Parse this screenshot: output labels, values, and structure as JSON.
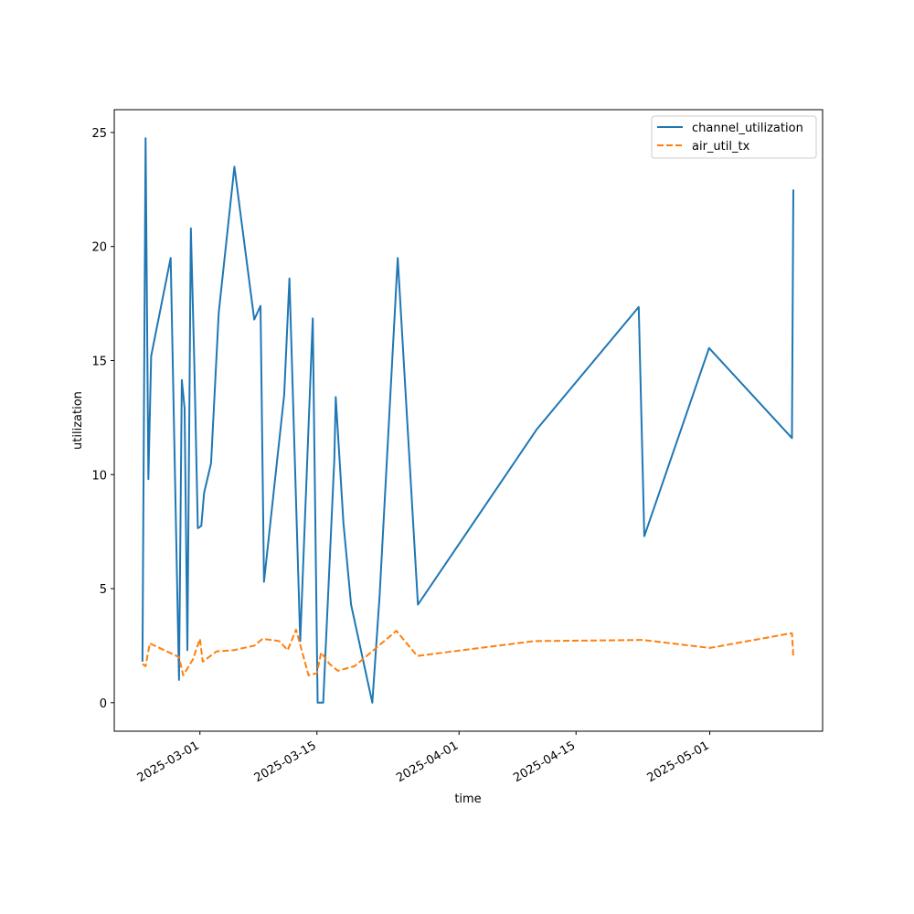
{
  "chart_data": {
    "type": "line",
    "title": "",
    "xlabel": "time",
    "ylabel": "utilization",
    "x_tick_labels": [
      "2025-03-01",
      "2025-03-15",
      "2025-04-01",
      "2025-04-15",
      "2025-05-01"
    ],
    "y_tick_labels": [
      "0",
      "5",
      "10",
      "15",
      "20",
      "25"
    ],
    "y_ticks": [
      0,
      5,
      10,
      15,
      20,
      25
    ],
    "ylim": [
      -1.25,
      26.0
    ],
    "xlim": [
      "2025-02-18T18:00",
      "2025-05-14T12:00"
    ],
    "grid": false,
    "legend_position": "top-right",
    "series": [
      {
        "name": "channel_utilization",
        "color": "#1f77b4",
        "dash": "solid",
        "x": [
          "2025-02-22T03:00",
          "2025-02-22T12:00",
          "2025-02-22T20:00",
          "2025-02-23T04:00",
          "2025-02-25T12:00",
          "2025-02-26T12:00",
          "2025-02-26T20:00",
          "2025-02-27T04:00",
          "2025-02-27T12:00",
          "2025-02-27T22:00",
          "2025-02-28T08:00",
          "2025-02-28T18:00",
          "2025-03-01T04:00",
          "2025-03-01T12:00",
          "2025-03-02T08:00",
          "2025-03-03T06:00",
          "2025-03-05T03:00",
          "2025-03-07T12:00",
          "2025-03-08T06:00",
          "2025-03-08T16:00",
          "2025-03-11T02:00",
          "2025-03-11T17:00",
          "2025-03-13T00:00",
          "2025-03-14T12:00",
          "2025-03-15T02:00",
          "2025-03-15T08:00",
          "2025-03-15T18:00",
          "2025-03-17T02:00",
          "2025-03-17T06:00",
          "2025-03-18T04:00",
          "2025-03-19T02:00",
          "2025-03-21T15:00",
          "2025-03-22T12:00",
          "2025-03-24T16:00",
          "2025-03-27T02:00",
          "2025-04-10T08:00",
          "2025-04-22T12:00",
          "2025-04-23T04:00",
          "2025-04-30T22:00",
          "2025-05-10T20:00",
          "2025-05-11T00:00"
        ],
        "values": [
          1.8,
          24.75,
          9.8,
          15.2,
          19.5,
          1.0,
          14.15,
          12.9,
          2.3,
          20.8,
          14.8,
          7.65,
          7.75,
          9.2,
          10.5,
          17.1,
          23.5,
          16.8,
          17.4,
          5.3,
          13.5,
          18.6,
          2.7,
          16.85,
          0.0,
          0.0,
          0.0,
          10.7,
          13.4,
          7.9,
          4.3,
          0.0,
          4.7,
          19.5,
          4.3,
          12.0,
          17.35,
          7.3,
          15.55,
          11.6,
          22.5
        ]
      },
      {
        "name": "air_util_tx",
        "color": "#ff7f0e",
        "dash": "dashed",
        "x": [
          "2025-02-22T03:00",
          "2025-02-22T12:00",
          "2025-02-23T00:00",
          "2025-02-26T12:00",
          "2025-02-27T00:00",
          "2025-02-28T04:00",
          "2025-03-01T00:00",
          "2025-03-01T08:00",
          "2025-03-03T00:00",
          "2025-03-05T00:00",
          "2025-03-07T12:00",
          "2025-03-08T12:00",
          "2025-03-10T12:00",
          "2025-03-11T12:00",
          "2025-03-12T12:00",
          "2025-03-14T00:00",
          "2025-03-15T00:00",
          "2025-03-15T12:00",
          "2025-03-16T12:00",
          "2025-03-17T12:00",
          "2025-03-18T12:00",
          "2025-03-19T12:00",
          "2025-03-24T12:00",
          "2025-03-27T00:00",
          "2025-04-10T00:00",
          "2025-04-23T00:00",
          "2025-05-01T00:00",
          "2025-05-10T20:00",
          "2025-05-11T00:00"
        ],
        "values": [
          1.7,
          1.6,
          2.6,
          2.0,
          1.2,
          1.9,
          2.8,
          1.8,
          2.25,
          2.3,
          2.5,
          2.8,
          2.7,
          2.3,
          3.2,
          1.2,
          1.3,
          2.2,
          1.7,
          1.4,
          1.5,
          1.6,
          3.15,
          2.05,
          2.7,
          2.75,
          2.4,
          3.05,
          2.0
        ]
      }
    ]
  }
}
